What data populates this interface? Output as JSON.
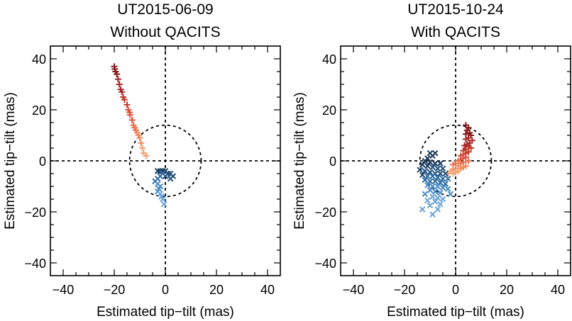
{
  "chart_data": [
    {
      "type": "scatter",
      "title": [
        "UT2015-06-09",
        "Without QACITS"
      ],
      "xlabel": "Estimated tip−tilt (mas)",
      "ylabel": "Estimated tip−tilt (mas)",
      "xlim": [
        -45,
        45
      ],
      "ylim": [
        -45,
        45
      ],
      "xticks": [
        -40,
        -20,
        0,
        20,
        40
      ],
      "yticks": [
        -40,
        -20,
        0,
        20,
        40
      ],
      "xtick_labels": [
        "−40",
        "−20",
        "0",
        "20",
        "40"
      ],
      "ytick_labels": [
        "−40",
        "−20",
        "0",
        "20",
        "40"
      ],
      "reference_circle_radius": 14,
      "series": [
        {
          "marker": "plus",
          "colors": [
            "#8b1a1a",
            "#a52a2a",
            "#c0392b",
            "#d9533f",
            "#e8704e",
            "#f08a5d",
            "#f4a070"
          ],
          "points": [
            [
              -20,
              37
            ],
            [
              -19.8,
              36
            ],
            [
              -19.5,
              35
            ],
            [
              -19,
              34
            ],
            [
              -18.5,
              32
            ],
            [
              -18,
              30
            ],
            [
              -17.5,
              28
            ],
            [
              -17,
              27
            ],
            [
              -16.5,
              25
            ],
            [
              -16,
              24
            ],
            [
              -15,
              22
            ],
            [
              -14.5,
              20
            ],
            [
              -14,
              19
            ],
            [
              -13.8,
              18
            ],
            [
              -13,
              16
            ],
            [
              -12.5,
              14
            ],
            [
              -12,
              13
            ],
            [
              -11.5,
              12
            ],
            [
              -11,
              11
            ],
            [
              -10.5,
              10
            ],
            [
              -10,
              9
            ],
            [
              -9.5,
              7
            ],
            [
              -9,
              5
            ],
            [
              -8.5,
              3
            ],
            [
              -7.5,
              2
            ]
          ]
        },
        {
          "marker": "x",
          "colors": [
            "#1b3a5c",
            "#1f4e79",
            "#2e6da4",
            "#4a8cc7",
            "#6ba3d6"
          ],
          "points": [
            [
              -3,
              -4
            ],
            [
              -2,
              -4
            ],
            [
              -1,
              -4
            ],
            [
              0,
              -4
            ],
            [
              1,
              -5
            ],
            [
              2,
              -5
            ],
            [
              3,
              -6
            ],
            [
              2,
              -7
            ],
            [
              0,
              -6
            ],
            [
              -1,
              -5
            ],
            [
              -2,
              -6
            ],
            [
              -3,
              -7
            ],
            [
              -4,
              -8
            ],
            [
              -3,
              -9
            ],
            [
              -2,
              -10
            ],
            [
              -2.5,
              -11
            ],
            [
              -3,
              -12
            ],
            [
              -2,
              -13
            ],
            [
              -1.5,
              -14
            ],
            [
              -1,
              -15
            ],
            [
              -0.5,
              -17
            ]
          ]
        }
      ]
    },
    {
      "type": "scatter",
      "title": [
        "UT2015-10-24",
        "With QACITS"
      ],
      "xlabel": "Estimated tip−tilt (mas)",
      "ylabel": "Estimated tip−tilt (mas)",
      "xlim": [
        -45,
        45
      ],
      "ylim": [
        -45,
        45
      ],
      "xticks": [
        -40,
        -20,
        0,
        20,
        40
      ],
      "yticks": [
        -40,
        -20,
        0,
        20,
        40
      ],
      "xtick_labels": [
        "−40",
        "−20",
        "0",
        "20",
        "40"
      ],
      "ytick_labels": [
        "−40",
        "−20",
        "0",
        "20",
        "40"
      ],
      "reference_circle_radius": 14,
      "series": [
        {
          "marker": "plus",
          "colors": [
            "#8b1a1a",
            "#a52a2a",
            "#c0392b",
            "#d9533f",
            "#e8704e",
            "#f08a5d",
            "#f4a070"
          ],
          "points": [
            [
              4,
              14
            ],
            [
              5,
              13
            ],
            [
              4.5,
              12
            ],
            [
              5.5,
              11
            ],
            [
              4,
              10.5
            ],
            [
              6,
              10
            ],
            [
              5,
              9
            ],
            [
              4,
              8.5
            ],
            [
              6.5,
              8
            ],
            [
              5.5,
              7
            ],
            [
              4.5,
              6.5
            ],
            [
              3.5,
              6
            ],
            [
              5,
              5.5
            ],
            [
              6,
              5
            ],
            [
              4,
              4.5
            ],
            [
              3,
              4
            ],
            [
              5,
              3.5
            ],
            [
              4,
              3
            ],
            [
              3,
              2.5
            ],
            [
              2,
              2
            ],
            [
              4,
              1.5
            ],
            [
              3,
              1
            ],
            [
              2,
              0.5
            ],
            [
              5,
              0
            ],
            [
              1,
              0
            ],
            [
              3,
              -0.5
            ],
            [
              2,
              -1
            ],
            [
              0,
              -1
            ],
            [
              -1,
              -1.5
            ],
            [
              1,
              -2
            ],
            [
              4,
              -2
            ],
            [
              3,
              -2.5
            ],
            [
              2,
              -3
            ],
            [
              0,
              -3
            ],
            [
              -1,
              -3.5
            ],
            [
              1,
              -4
            ],
            [
              -2,
              -4
            ],
            [
              0,
              -4.5
            ],
            [
              -1,
              -5
            ],
            [
              -3,
              -5
            ]
          ]
        },
        {
          "marker": "x",
          "colors": [
            "#1b3a5c",
            "#1f4e79",
            "#2e6da4",
            "#4a8cc7",
            "#6ba3d6"
          ],
          "points": [
            [
              -8,
              3
            ],
            [
              -10,
              3
            ],
            [
              -9,
              2
            ],
            [
              -11,
              1
            ],
            [
              -12,
              0
            ],
            [
              -10,
              -0.5
            ],
            [
              -8,
              -1
            ],
            [
              -6,
              -1
            ],
            [
              -13,
              -1.5
            ],
            [
              -11,
              -2
            ],
            [
              -9,
              -2.5
            ],
            [
              -7,
              -3
            ],
            [
              -5,
              -3
            ],
            [
              -14,
              -3.5
            ],
            [
              -12,
              -4
            ],
            [
              -10,
              -4.5
            ],
            [
              -8,
              -5
            ],
            [
              -6,
              -5
            ],
            [
              -4,
              -5
            ],
            [
              -13,
              -5.5
            ],
            [
              -11,
              -6
            ],
            [
              -9,
              -6
            ],
            [
              -7,
              -6.5
            ],
            [
              -5,
              -7
            ],
            [
              -3,
              -7
            ],
            [
              -12,
              -7.5
            ],
            [
              -10,
              -8
            ],
            [
              -8,
              -8
            ],
            [
              -6,
              -8.5
            ],
            [
              -4,
              -9
            ],
            [
              -11,
              -9.5
            ],
            [
              -9,
              -10
            ],
            [
              -7,
              -10
            ],
            [
              -5,
              -10.5
            ],
            [
              -3,
              -11
            ],
            [
              -10,
              -11.5
            ],
            [
              -8,
              -12
            ],
            [
              -6,
              -12.5
            ],
            [
              -2,
              -13
            ],
            [
              -12,
              -13
            ],
            [
              -9,
              -14
            ],
            [
              -7,
              -14.5
            ],
            [
              -5,
              -15
            ],
            [
              -11,
              -15.5
            ],
            [
              -8,
              -16
            ],
            [
              -6,
              -17
            ],
            [
              -10,
              -17.5
            ],
            [
              -7,
              -19
            ],
            [
              -9,
              -21
            ],
            [
              -13,
              -19
            ]
          ]
        }
      ]
    }
  ]
}
